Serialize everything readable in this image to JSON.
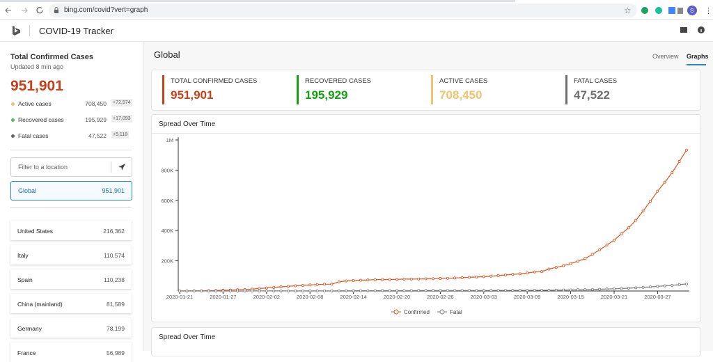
{
  "browser": {
    "url": "bing.com/covid?vert=graph"
  },
  "header": {
    "title": "COVID-19 Tracker"
  },
  "sidebar": {
    "title": "Total Confirmed Cases",
    "updated": "Updated 8 min ago",
    "total": "951,901",
    "stats": [
      {
        "label": "Active cases",
        "value": "708,450",
        "delta": "+72,574",
        "color": "#f0c36d"
      },
      {
        "label": "Recovered cases",
        "value": "195,929",
        "delta": "+17,093",
        "color": "#5cb85c"
      },
      {
        "label": "Fatal cases",
        "value": "47,522",
        "delta": "+5,118",
        "color": "#666666"
      }
    ],
    "search_placeholder": "Filter to a location",
    "selected": {
      "name": "Global",
      "value": "951,901"
    },
    "countries": [
      {
        "name": "United States",
        "value": "216,362"
      },
      {
        "name": "Italy",
        "value": "110,574"
      },
      {
        "name": "Spain",
        "value": "110,238"
      },
      {
        "name": "China (mainland)",
        "value": "81,589"
      },
      {
        "name": "Germany",
        "value": "78,199"
      },
      {
        "name": "France",
        "value": "56,989"
      }
    ]
  },
  "main": {
    "region": "Global",
    "tabs": [
      "Overview",
      "Graphs"
    ],
    "summary": [
      {
        "label": "TOTAL CONFIRMED CASES",
        "value": "951,901",
        "color": "#c8401a"
      },
      {
        "label": "RECOVERED CASES",
        "value": "195,929",
        "color": "#13a10e"
      },
      {
        "label": "ACTIVE CASES",
        "value": "708,450",
        "color": "#f0c36d"
      },
      {
        "label": "FATAL CASES",
        "value": "47,522",
        "color": "#6e6e6e"
      }
    ],
    "chart": {
      "type": "line",
      "title": "Spread Over Time",
      "x": [
        "2020-01-21",
        "2020-01-22",
        "2020-01-23",
        "2020-01-24",
        "2020-01-25",
        "2020-01-26",
        "2020-01-27",
        "2020-01-28",
        "2020-01-29",
        "2020-01-30",
        "2020-01-31",
        "2020-02-01",
        "2020-02-02",
        "2020-02-03",
        "2020-02-04",
        "2020-02-05",
        "2020-02-06",
        "2020-02-07",
        "2020-02-08",
        "2020-02-09",
        "2020-02-10",
        "2020-02-11",
        "2020-02-12",
        "2020-02-13",
        "2020-02-14",
        "2020-02-15",
        "2020-02-16",
        "2020-02-17",
        "2020-02-18",
        "2020-02-19",
        "2020-02-20",
        "2020-02-21",
        "2020-02-22",
        "2020-02-23",
        "2020-02-24",
        "2020-02-25",
        "2020-02-26",
        "2020-02-27",
        "2020-02-28",
        "2020-02-29",
        "2020-03-01",
        "2020-03-02",
        "2020-03-03",
        "2020-03-04",
        "2020-03-05",
        "2020-03-06",
        "2020-03-07",
        "2020-03-08",
        "2020-03-09",
        "2020-03-10",
        "2020-03-11",
        "2020-03-12",
        "2020-03-13",
        "2020-03-14",
        "2020-03-15",
        "2020-03-16",
        "2020-03-17",
        "2020-03-18",
        "2020-03-19",
        "2020-03-20",
        "2020-03-21",
        "2020-03-22",
        "2020-03-23",
        "2020-03-24",
        "2020-03-25",
        "2020-03-26",
        "2020-03-27",
        "2020-03-28",
        "2020-03-29",
        "2020-03-30",
        "2020-03-31"
      ],
      "series": [
        {
          "name": "Confirmed",
          "color": "#d9541e",
          "values": [
            555,
            654,
            941,
            1434,
            2118,
            2927,
            5578,
            6166,
            8234,
            9927,
            12038,
            16787,
            19881,
            23892,
            27635,
            30794,
            34391,
            37120,
            40150,
            42762,
            44802,
            45221,
            60368,
            66885,
            69030,
            71224,
            73258,
            75136,
            75639,
            76197,
            76823,
            78579,
            78965,
            79568,
            80413,
            81395,
            82754,
            84120,
            86011,
            88369,
            90306,
            92840,
            95120,
            97886,
            101801,
            105847,
            109821,
            113590,
            118620,
            125875,
            128352,
            145205,
            156101,
            167454,
            181574,
            197102,
            214821,
            242570,
            272208,
            304507,
            336953,
            378235,
            418045,
            467653,
            529591,
            593291,
            660693,
            720140,
            782389,
            857487,
            932605
          ]
        },
        {
          "name": "Fatal",
          "color": "#7a7a7a",
          "values": [
            17,
            18,
            26,
            42,
            56,
            82,
            131,
            133,
            171,
            213,
            259,
            362,
            426,
            492,
            564,
            634,
            719,
            806,
            906,
            1013,
            1113,
            1118,
            1371,
            1523,
            1666,
            1770,
            1868,
            2007,
            2122,
            2247,
            2251,
            2458,
            2469,
            2629,
            2708,
            2770,
            2814,
            2872,
            2941,
            2996,
            3085,
            3160,
            3254,
            3348,
            3460,
            3558,
            3802,
            3988,
            4262,
            4615,
            4720,
            5404,
            5819,
            6440,
            7126,
            7905,
            8733,
            9867,
            11299,
            12973,
            14623,
            16497,
            18615,
            21181,
            23970,
            27198,
            30652,
            33925,
            37582,
            42107,
            46809
          ]
        }
      ],
      "xlim": [
        "2020-01-21",
        "2020-03-31"
      ],
      "xticks": [
        "2020-01-21",
        "2020-01-27",
        "2020-02-02",
        "2020-02-08",
        "2020-02-14",
        "2020-02-20",
        "2020-02-26",
        "2020-03-03",
        "2020-03-09",
        "2020-03-15",
        "2020-03-21",
        "2020-03-27"
      ],
      "ylim": [
        0,
        1000000
      ],
      "yticks": [
        {
          "value": 200000,
          "label": "200K"
        },
        {
          "value": 400000,
          "label": "400K"
        },
        {
          "value": 600000,
          "label": "600K"
        },
        {
          "value": 800000,
          "label": "800K"
        },
        {
          "value": 1000000,
          "label": "1M"
        }
      ],
      "grid": false,
      "legend": "bottom"
    },
    "next_section_title": "Spread Over Time"
  }
}
